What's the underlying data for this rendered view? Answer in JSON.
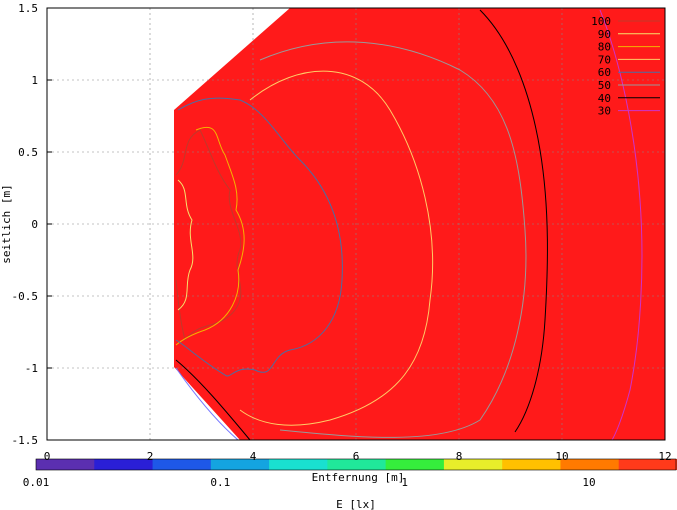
{
  "chart_data": {
    "type": "heatmap",
    "title": "",
    "xlabel": "Entfernung [m]",
    "ylabel": "seitlich [m]",
    "xlim": [
      0,
      12
    ],
    "ylim": [
      -1.5,
      1.5
    ],
    "x_ticks": [
      "0",
      "2",
      "4",
      "6",
      "8",
      "10",
      "12"
    ],
    "y_ticks": [
      "1.5",
      "1",
      "0.5",
      "0",
      "-0.5",
      "-1",
      "-1.5"
    ],
    "grid": true,
    "fill_color": "#ff1a1a",
    "contour_legend": {
      "placement": "top-right",
      "levels": [
        {
          "label": "100",
          "color": "#c0392b"
        },
        {
          "label": "90",
          "color": "#f7e26b"
        },
        {
          "label": "80",
          "color": "#f4b400"
        },
        {
          "label": "70",
          "color": "#ffcc66"
        },
        {
          "label": "60",
          "color": "#4a6fa5"
        },
        {
          "label": "50",
          "color": "#999999"
        },
        {
          "label": "40",
          "color": "#000000"
        },
        {
          "label": "30",
          "color": "#cc33cc"
        }
      ]
    },
    "colorbar": {
      "label": "E [lx]",
      "scale": "log",
      "ticks": [
        "0.01",
        "0.1",
        "1",
        "10"
      ],
      "colors": [
        "#5b2fb0",
        "#2a1fd6",
        "#1e58e8",
        "#14a4e0",
        "#19e0d0",
        "#20e89a",
        "#35ee3c",
        "#e8ee2a",
        "#ffc000",
        "#ff7a00",
        "#ff3a1a"
      ]
    }
  }
}
